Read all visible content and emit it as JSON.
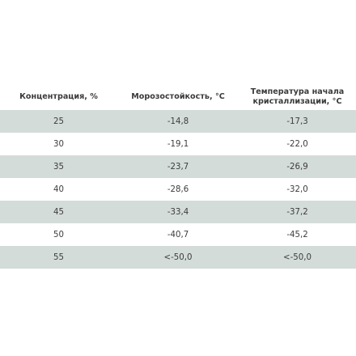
{
  "table": {
    "headers": [
      "Концентрация, %",
      "Морозостойкость, °С",
      "Температура начала кристаллизации, °С"
    ],
    "rows": [
      [
        "25",
        "-14,8",
        "-17,3"
      ],
      [
        "30",
        "-19,1",
        "-22,0"
      ],
      [
        "35",
        "-23,7",
        "-26,9"
      ],
      [
        "40",
        "-28,6",
        "-32,0"
      ],
      [
        "45",
        "-33,4",
        "-37,2"
      ],
      [
        "50",
        "-40,7",
        "-45,2"
      ],
      [
        "55",
        "<-50,0",
        "<-50,0"
      ]
    ]
  },
  "colors": {
    "stripe": "#d3dcd9",
    "background": "#ffffff",
    "text": "#3d3d3d"
  }
}
